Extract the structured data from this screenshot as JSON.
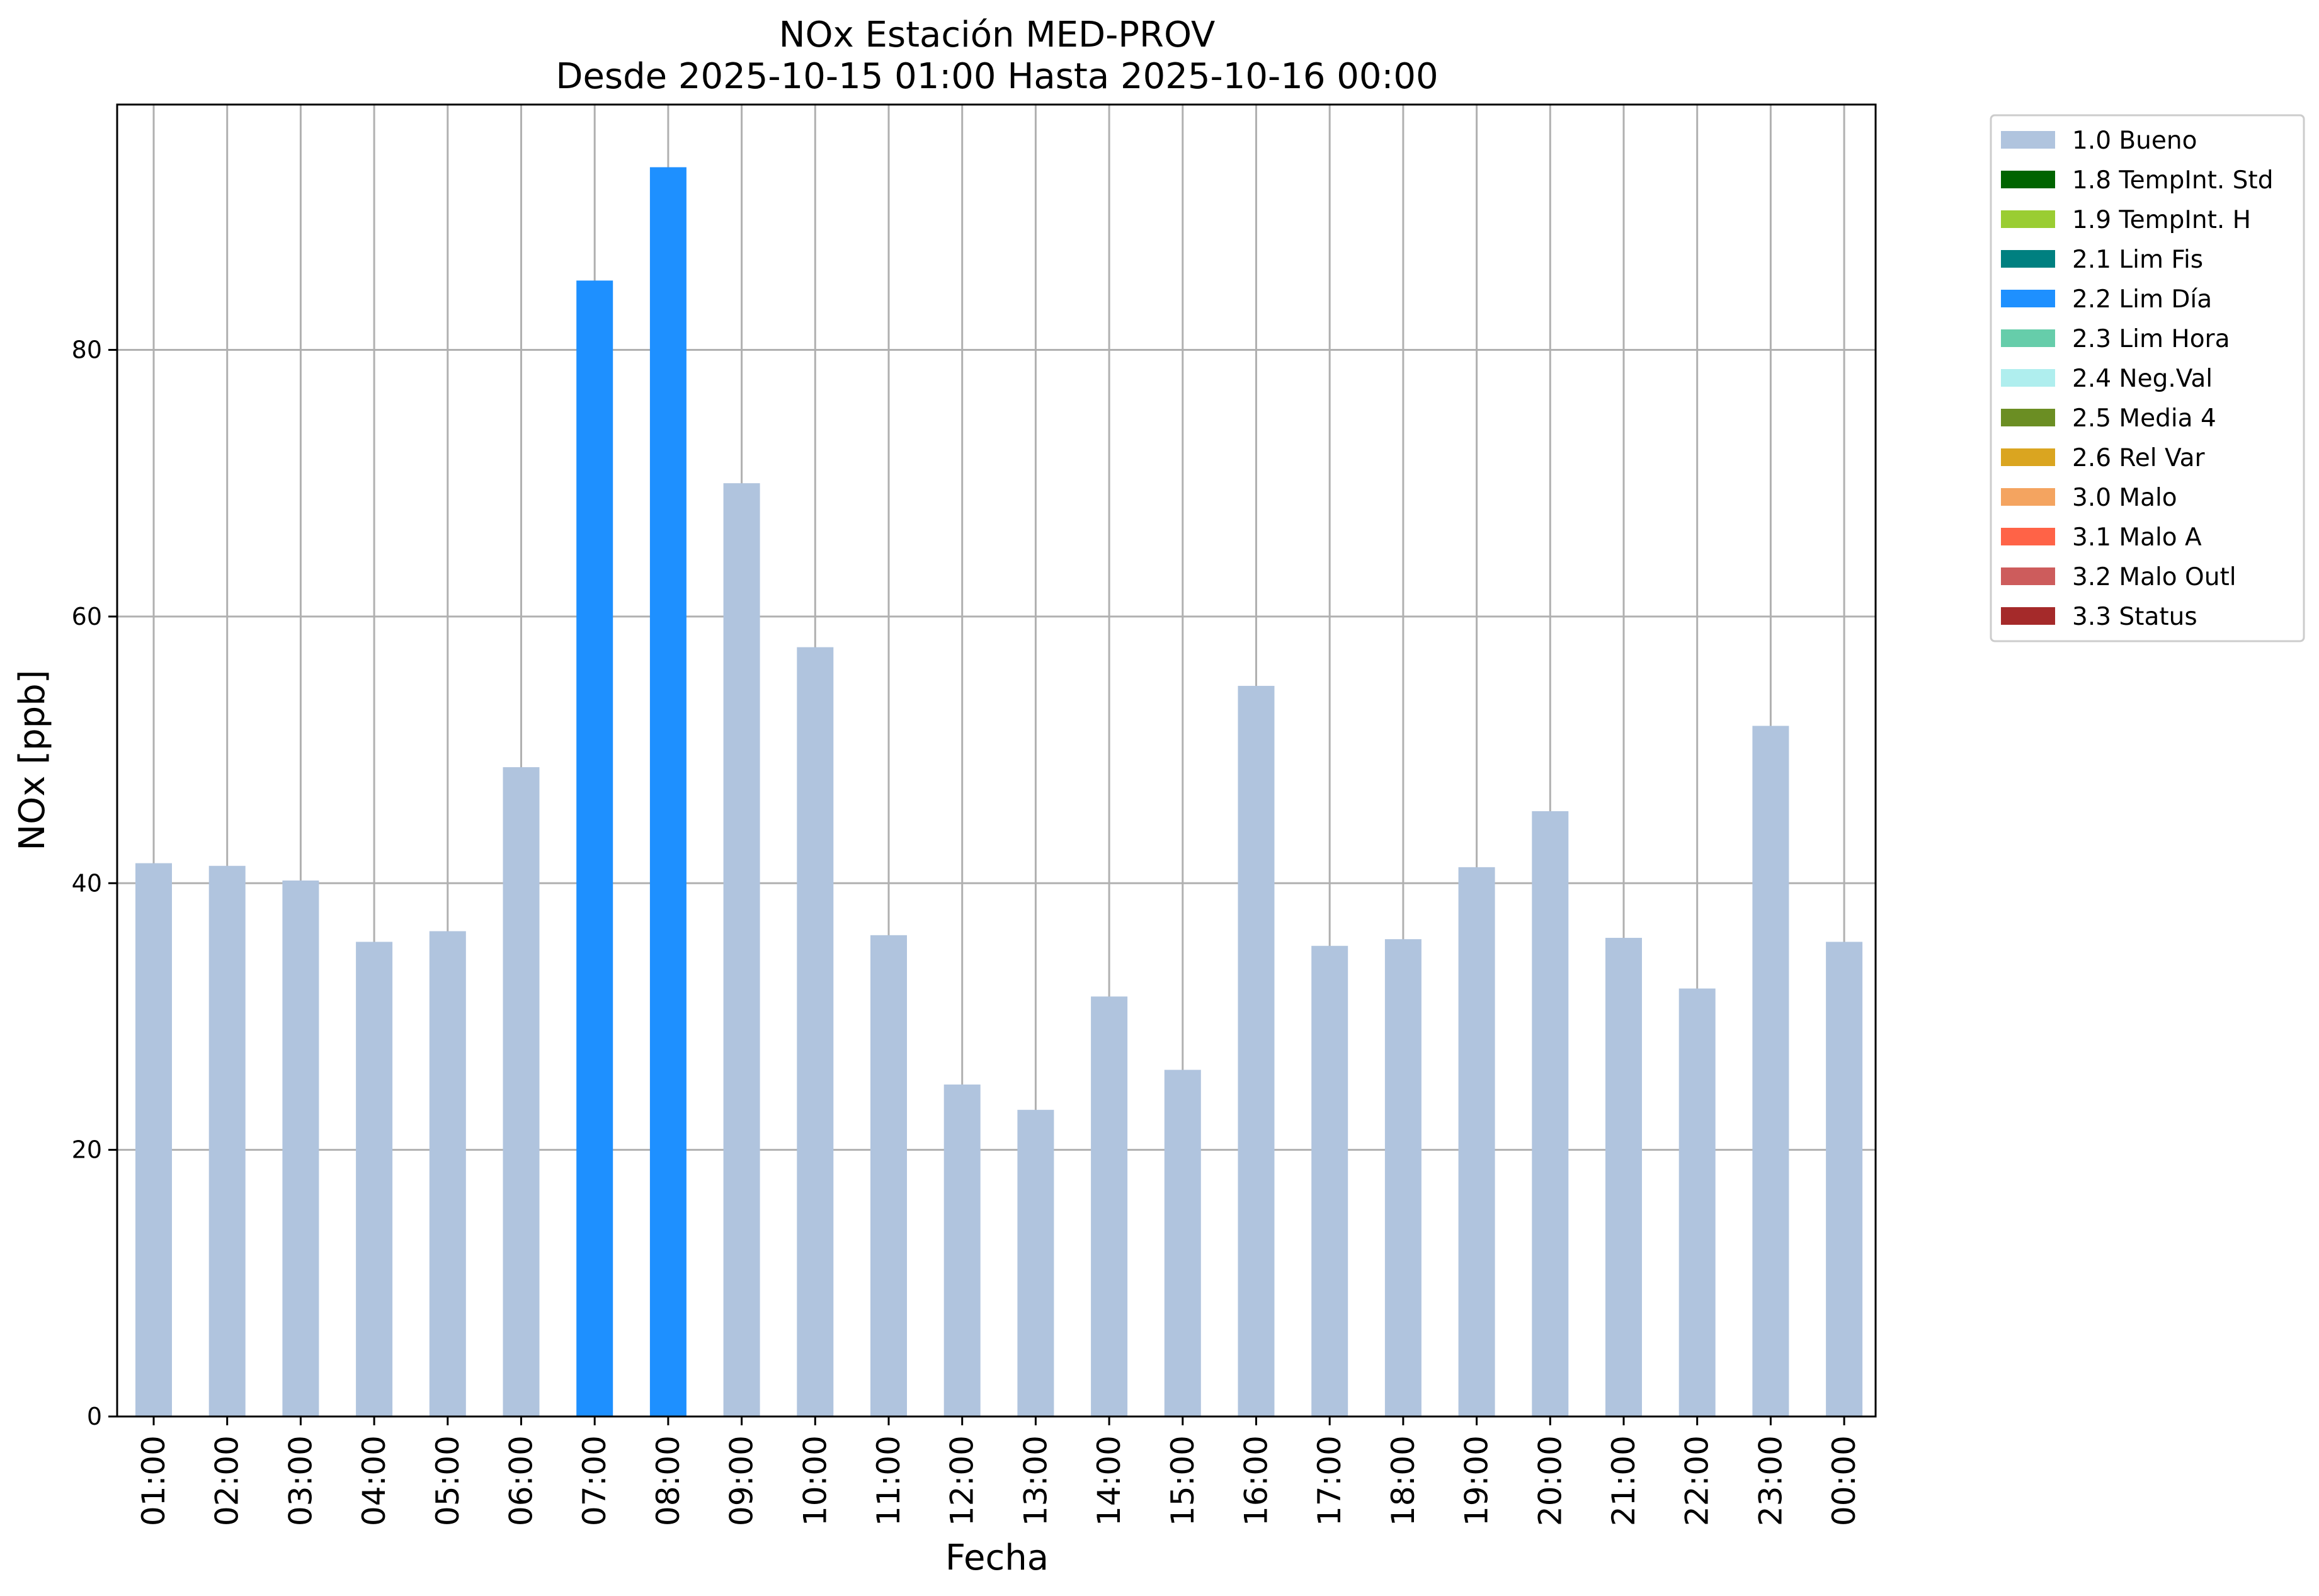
{
  "chart_data": {
    "type": "bar",
    "title_line1": "NOx Estación MED-PROV",
    "title_line2": "Desde 2025-10-15 01:00 Hasta 2025-10-16 00:00",
    "xlabel": "Fecha",
    "ylabel": "NOx [ppb]",
    "ylim": [
      0,
      98.4
    ],
    "yticks": [
      0,
      20,
      40,
      60,
      80
    ],
    "grid": true,
    "legend_position": "outside-top-right",
    "categories": [
      "01:00",
      "02:00",
      "03:00",
      "04:00",
      "05:00",
      "06:00",
      "07:00",
      "08:00",
      "09:00",
      "10:00",
      "11:00",
      "12:00",
      "13:00",
      "14:00",
      "15:00",
      "16:00",
      "17:00",
      "18:00",
      "19:00",
      "20:00",
      "21:00",
      "22:00",
      "23:00",
      "00:00"
    ],
    "values": [
      41.5,
      41.3,
      40.2,
      35.6,
      36.4,
      48.7,
      85.2,
      93.7,
      70.0,
      57.7,
      36.1,
      24.9,
      23.0,
      31.5,
      26.0,
      54.8,
      35.3,
      35.8,
      41.2,
      45.4,
      35.9,
      32.1,
      51.8,
      35.6
    ],
    "flags": [
      "1.0 Bueno",
      "1.0 Bueno",
      "1.0 Bueno",
      "1.0 Bueno",
      "1.0 Bueno",
      "1.0 Bueno",
      "2.2 Lim Día",
      "2.2 Lim Día",
      "1.0 Bueno",
      "1.0 Bueno",
      "1.0 Bueno",
      "1.0 Bueno",
      "1.0 Bueno",
      "1.0 Bueno",
      "1.0 Bueno",
      "1.0 Bueno",
      "1.0 Bueno",
      "1.0 Bueno",
      "1.0 Bueno",
      "1.0 Bueno",
      "1.0 Bueno",
      "1.0 Bueno",
      "1.0 Bueno",
      "1.0 Bueno"
    ],
    "legend": [
      {
        "label": "1.0 Bueno",
        "color": "#b0c4de"
      },
      {
        "label": "1.8 TempInt. Std",
        "color": "#006400"
      },
      {
        "label": "1.9 TempInt. H",
        "color": "#9acd32"
      },
      {
        "label": "2.1 Lim Fis",
        "color": "#008080"
      },
      {
        "label": "2.2 Lim Día",
        "color": "#1e90ff"
      },
      {
        "label": "2.3 Lim Hora",
        "color": "#66cdaa"
      },
      {
        "label": "2.4 Neg.Val",
        "color": "#afeeee"
      },
      {
        "label": "2.5 Media 4",
        "color": "#6b8e23"
      },
      {
        "label": "2.6 Rel Var",
        "color": "#daa520"
      },
      {
        "label": "3.0 Malo",
        "color": "#f4a460"
      },
      {
        "label": "3.1 Malo A",
        "color": "#ff6347"
      },
      {
        "label": "3.2 Malo Outl",
        "color": "#cd5c5c"
      },
      {
        "label": "3.3 Status",
        "color": "#a52a2a"
      }
    ]
  }
}
